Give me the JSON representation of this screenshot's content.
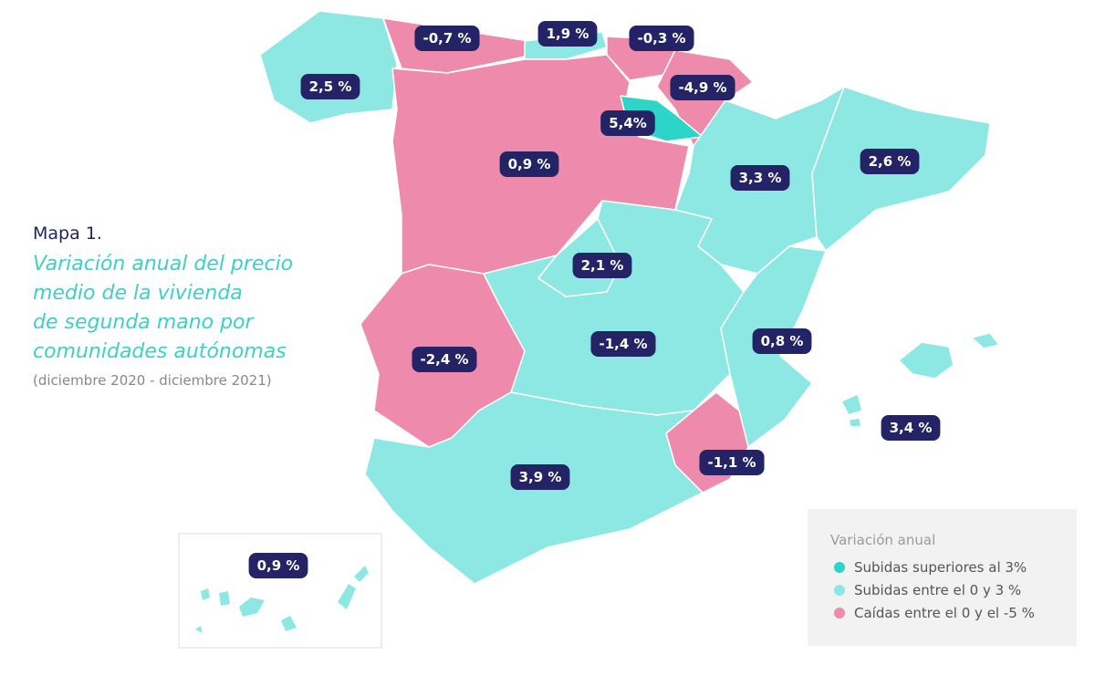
{
  "heading": {
    "label": "Mapa 1.",
    "title_lines": [
      "Variación anual del precio",
      "medio de la vivienda",
      "de segunda mano por",
      "comunidades autónomas"
    ],
    "subtitle": "(diciembre 2020 - diciembre 2021)"
  },
  "regions": [
    "-0,7 %",
    "1,9 %",
    "-0,3 %",
    "2,5 %",
    "-4,9 %",
    "5,4%",
    "0,9 %",
    "3,3 %",
    "2,6 %",
    "2,1 %",
    "-1,4 %",
    "0,8 %",
    "-2,4 %",
    "3,4 %",
    "-1,1 %",
    "3,9 %",
    "0,9 %"
  ],
  "legend": {
    "title": "Variación anual",
    "items": [
      "Subidas superiores al 3%",
      "Subidas entre el 0 y 3 %",
      "Caídas entre el 0 y el -5 %"
    ]
  }
}
